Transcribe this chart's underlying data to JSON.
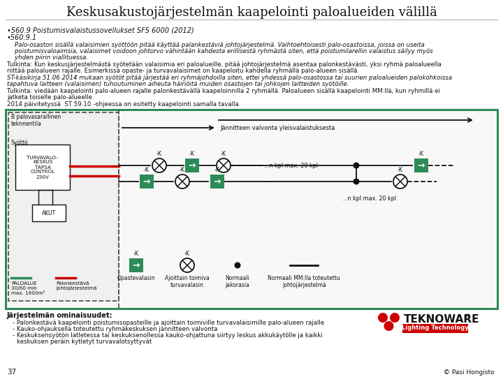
{
  "title": "Keskusakustojärjestelmän kaapelointi paloalueiden välillä",
  "sub1": "•560.9 Poistumisvalaistussovellukset SFS 6000 (2012)",
  "sub2": "•560.9.1",
  "body1": "    Palo-osaston sisällä valaisimien syöttöön pitää käyttää palankestäviä johtojärjestelmä. Vaihtoehtoisesti palo-osastoissa, joissa on useita",
  "body2": "    poistumisvaloaimsia, valaisimet voidoon johtorvo vähintään kahdesta erillisestä ryhmästä siten, että poistumilarellin valaistus säilyy myös",
  "body3": "    yhden piirin viallituessa.",
  "tulk1": "Tulkinta: Kun keskusjärjestelmästä syötetään valaisimia eri paloalueille, pitää johtojärjestelmä asentaa palonkestävästi, yksi ryhmä paloalueella",
  "tulk2": "riittää paloalueen rajalle. Esimerkissä opaste- ja turvavalaisimet on kaapeloitu kahdella ryhmällä palo-alueen sisällä.",
  "st1": "ST-käsikirja 51.06 2014 mukaan syötöt pitää järjestää eri ryhmäjohdoilla siten, ettei yhdessä palo-osastossa tai suurien paloalueiden palokohkoissa",
  "st2": "tapahtuva laitteen (valaisimen) tuhoutuminen aiheuta häiriöitä muiden osastojen tai johkojen laitteiden syötöille.",
  "tulk3": "Tulkinta: viedään kaapelointi palo-alueen rajalle palonkestävällä kaapeloinnilla 2 ryhmällä. Paloalueen sisällä kaapelointi MM:llä, kun ryhmillä ei",
  "tulk4": "jatketa toiselle palo-alueelle.",
  "st3": "2014 päivitetyssä  ST 59.10 -ohjeessa on esitetty kaapelointi samalla tavalla.",
  "footer_title": "Järjestelmän ominaisuudet:",
  "bullet1": "Palonkestävä kaapelointi poistumisopasteille ja ajoittain toimiville turvavalaisimille palo-alueen rajalle",
  "bullet2": "Kauko-ohjauksella toteutettu ryhmäkeskuksen jännitteen valvonta",
  "bullet3": "Keskuksensyötön latletessa tai keskuksenollessa kauko-ohjattuna siirtyy leskus akkukäytölle ja kaikki",
  "bullet3b": "keskuksen peräin kytletyt turvavalotsyttyvät",
  "page": "37",
  "copyright": "© Pasi Hongisto",
  "bg": "#ffffff",
  "green": "#2d8b57",
  "red": "#cc0000",
  "dark": "#111111",
  "gray": "#555555"
}
